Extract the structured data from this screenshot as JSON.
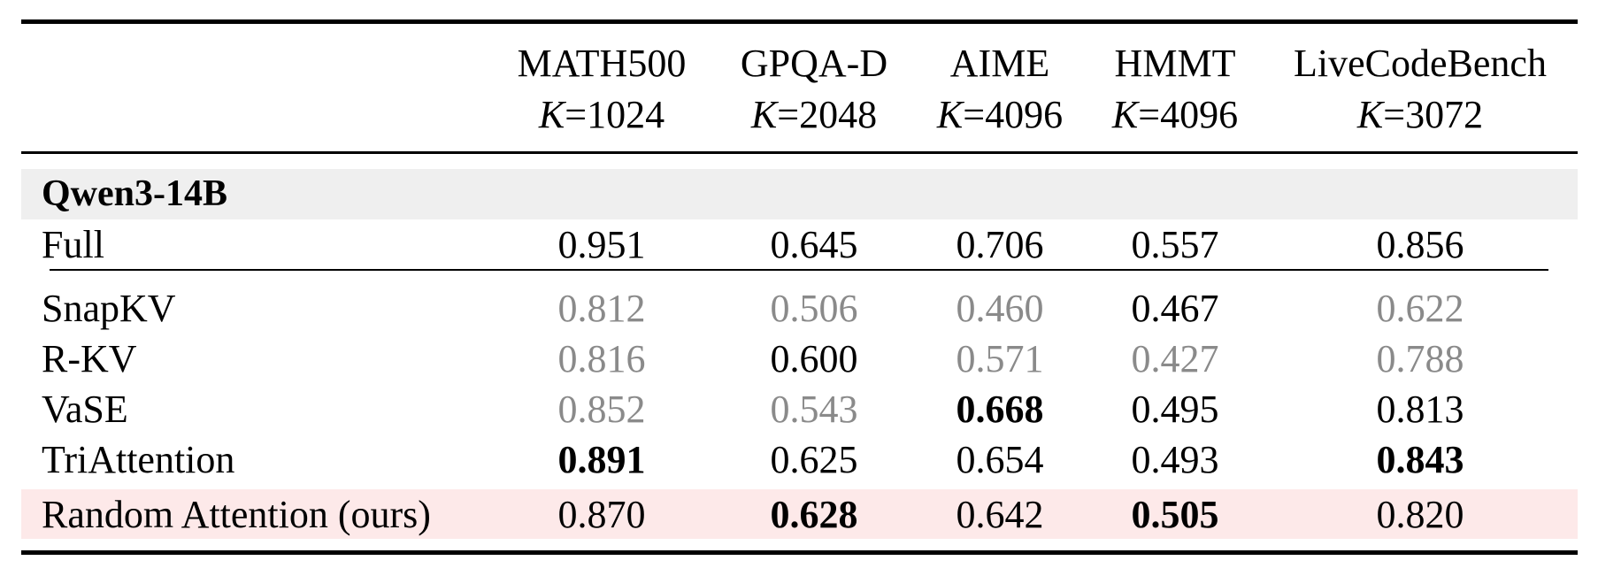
{
  "header": {
    "columns": [
      {
        "name": "MATH500",
        "k_var": "K",
        "k_val": "=1024"
      },
      {
        "name": "GPQA-D",
        "k_var": "K",
        "k_val": "=2048"
      },
      {
        "name": "AIME",
        "k_var": "K",
        "k_val": "=4096"
      },
      {
        "name": "HMMT",
        "k_var": "K",
        "k_val": "=4096"
      },
      {
        "name": "LiveCodeBench",
        "k_var": "K",
        "k_val": "=3072"
      }
    ]
  },
  "group": {
    "label": "Qwen3-14B"
  },
  "rows": [
    {
      "method": "Full",
      "values": [
        "0.951",
        "0.645",
        "0.706",
        "0.557",
        "0.856"
      ],
      "styles": [
        "n",
        "n",
        "n",
        "n",
        "n"
      ]
    },
    {
      "method": "SnapKV",
      "values": [
        "0.812",
        "0.506",
        "0.460",
        "0.467",
        "0.622"
      ],
      "styles": [
        "dim",
        "dim",
        "dim",
        "n",
        "dim"
      ]
    },
    {
      "method": "R-KV",
      "values": [
        "0.816",
        "0.600",
        "0.571",
        "0.427",
        "0.788"
      ],
      "styles": [
        "dim",
        "n",
        "dim",
        "dim",
        "dim"
      ]
    },
    {
      "method": "VaSE",
      "values": [
        "0.852",
        "0.543",
        "0.668",
        "0.495",
        "0.813"
      ],
      "styles": [
        "dim",
        "dim",
        "best",
        "n",
        "n"
      ]
    },
    {
      "method": "TriAttention",
      "values": [
        "0.891",
        "0.625",
        "0.654",
        "0.493",
        "0.843"
      ],
      "styles": [
        "best",
        "n",
        "n",
        "n",
        "best"
      ]
    },
    {
      "method": "Random Attention (ours)",
      "values": [
        "0.870",
        "0.628",
        "0.642",
        "0.505",
        "0.820"
      ],
      "styles": [
        "n",
        "best",
        "n",
        "best",
        "n"
      ]
    }
  ]
}
